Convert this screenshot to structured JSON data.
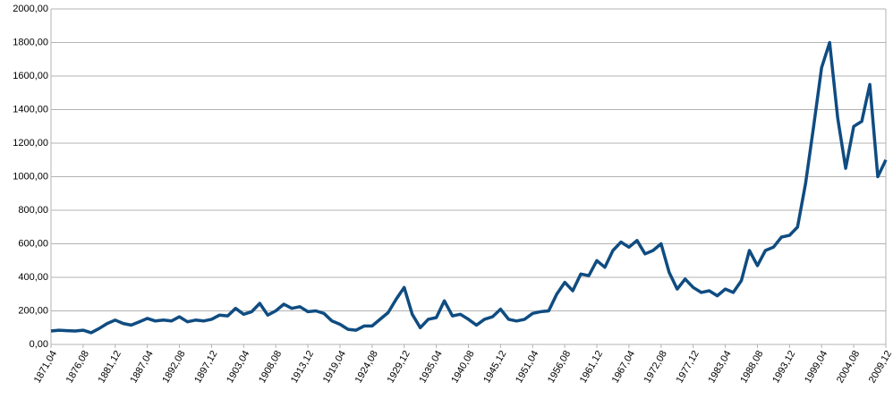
{
  "chart_data": {
    "type": "line",
    "categories": [
      "1871,04",
      null,
      null,
      null,
      "1876,08",
      null,
      null,
      null,
      "1881,12",
      null,
      null,
      null,
      "1887,04",
      null,
      null,
      null,
      "1892,08",
      null,
      null,
      null,
      "1897,12",
      null,
      null,
      null,
      "1903,04",
      null,
      null,
      null,
      "1908,08",
      null,
      null,
      null,
      "1913,12",
      null,
      null,
      null,
      "1919,04",
      null,
      null,
      null,
      "1924,08",
      null,
      null,
      null,
      "1929,12",
      null,
      null,
      null,
      "1935,04",
      null,
      null,
      null,
      "1940,08",
      null,
      null,
      null,
      "1945,12",
      null,
      null,
      null,
      "1951,04",
      null,
      null,
      null,
      "1956,08",
      null,
      null,
      null,
      "1961,12",
      null,
      null,
      null,
      "1967,04",
      null,
      null,
      null,
      "1972,08",
      null,
      null,
      null,
      "1977,12",
      null,
      null,
      null,
      "1983,04",
      null,
      null,
      null,
      "1988,08",
      null,
      null,
      null,
      "1993,12",
      null,
      null,
      null,
      "1999,04",
      null,
      null,
      null,
      "2004,08",
      null,
      null,
      null,
      "2009,12"
    ],
    "values": [
      80,
      85,
      82,
      80,
      85,
      70,
      95,
      125,
      145,
      125,
      115,
      135,
      155,
      140,
      145,
      140,
      165,
      135,
      145,
      140,
      150,
      175,
      170,
      215,
      180,
      195,
      245,
      175,
      200,
      240,
      215,
      225,
      195,
      200,
      185,
      140,
      120,
      90,
      85,
      110,
      110,
      150,
      190,
      270,
      340,
      180,
      100,
      150,
      160,
      260,
      170,
      180,
      150,
      115,
      150,
      165,
      210,
      150,
      140,
      150,
      185,
      195,
      200,
      300,
      370,
      320,
      420,
      410,
      500,
      460,
      560,
      610,
      580,
      620,
      540,
      560,
      600,
      430,
      330,
      390,
      340,
      310,
      320,
      290,
      330,
      310,
      380,
      560,
      470,
      560,
      580,
      640,
      650,
      700,
      960,
      1300,
      1650,
      1800,
      1350,
      1050,
      1300,
      1330,
      1550,
      1000,
      1100
    ],
    "color": "#0f4c81",
    "ylim": [
      0,
      2000
    ],
    "yticks": [
      {
        "value": 0,
        "label": "0,00"
      },
      {
        "value": 200,
        "label": "200,00"
      },
      {
        "value": 400,
        "label": "400,00"
      },
      {
        "value": 600,
        "label": "600,00"
      },
      {
        "value": 800,
        "label": "800,00"
      },
      {
        "value": 1000,
        "label": "1000,00"
      },
      {
        "value": 1200,
        "label": "1200,00"
      },
      {
        "value": 1400,
        "label": "1400,00"
      },
      {
        "value": 1600,
        "label": "1600,00"
      },
      {
        "value": 1800,
        "label": "1800,00"
      },
      {
        "value": 2000,
        "label": "2000,00"
      }
    ],
    "grid": true
  }
}
